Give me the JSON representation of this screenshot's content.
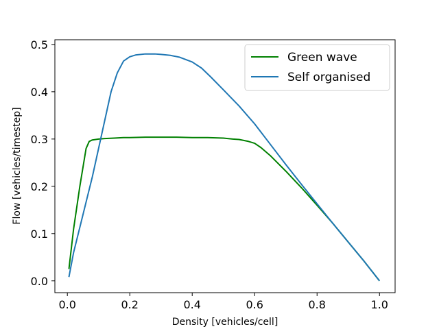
{
  "chart_data": {
    "type": "line",
    "xlabel": "Density [vehicles/cell]",
    "ylabel": "Flow [vehicles/timestep]",
    "xlim": [
      -0.04,
      1.05
    ],
    "ylim": [
      -0.025,
      0.51
    ],
    "xticks": [
      0.0,
      0.2,
      0.4,
      0.6,
      0.8,
      1.0
    ],
    "xtick_labels": [
      "0.0",
      "0.2",
      "0.4",
      "0.6",
      "0.8",
      "1.0"
    ],
    "yticks": [
      0.0,
      0.1,
      0.2,
      0.3,
      0.4,
      0.5
    ],
    "ytick_labels": [
      "0.0",
      "0.1",
      "0.2",
      "0.3",
      "0.4",
      "0.5"
    ],
    "grid": false,
    "legend_position": "top-right",
    "series": [
      {
        "name": "Green wave",
        "color": "#008000",
        "x": [
          0.005,
          0.02,
          0.04,
          0.06,
          0.07,
          0.08,
          0.1,
          0.12,
          0.15,
          0.18,
          0.2,
          0.25,
          0.3,
          0.35,
          0.4,
          0.45,
          0.5,
          0.53,
          0.55,
          0.58,
          0.6,
          0.62,
          0.65,
          0.7,
          0.75,
          0.8,
          0.85,
          0.9,
          0.95,
          1.0
        ],
        "y": [
          0.025,
          0.11,
          0.2,
          0.28,
          0.295,
          0.298,
          0.3,
          0.301,
          0.302,
          0.303,
          0.303,
          0.304,
          0.304,
          0.304,
          0.303,
          0.303,
          0.302,
          0.3,
          0.299,
          0.295,
          0.291,
          0.282,
          0.265,
          0.232,
          0.197,
          0.16,
          0.122,
          0.082,
          0.042,
          0.0
        ]
      },
      {
        "name": "Self organised",
        "color": "#1f77b4",
        "x": [
          0.005,
          0.02,
          0.05,
          0.08,
          0.1,
          0.12,
          0.14,
          0.16,
          0.18,
          0.2,
          0.22,
          0.25,
          0.28,
          0.3,
          0.33,
          0.36,
          0.4,
          0.43,
          0.46,
          0.5,
          0.55,
          0.6,
          0.65,
          0.7,
          0.75,
          0.8,
          0.85,
          0.9,
          0.95,
          1.0
        ],
        "y": [
          0.008,
          0.06,
          0.14,
          0.22,
          0.28,
          0.34,
          0.4,
          0.44,
          0.465,
          0.474,
          0.478,
          0.48,
          0.48,
          0.479,
          0.477,
          0.473,
          0.463,
          0.45,
          0.431,
          0.404,
          0.37,
          0.332,
          0.289,
          0.246,
          0.204,
          0.163,
          0.122,
          0.082,
          0.042,
          0.0
        ]
      }
    ]
  }
}
